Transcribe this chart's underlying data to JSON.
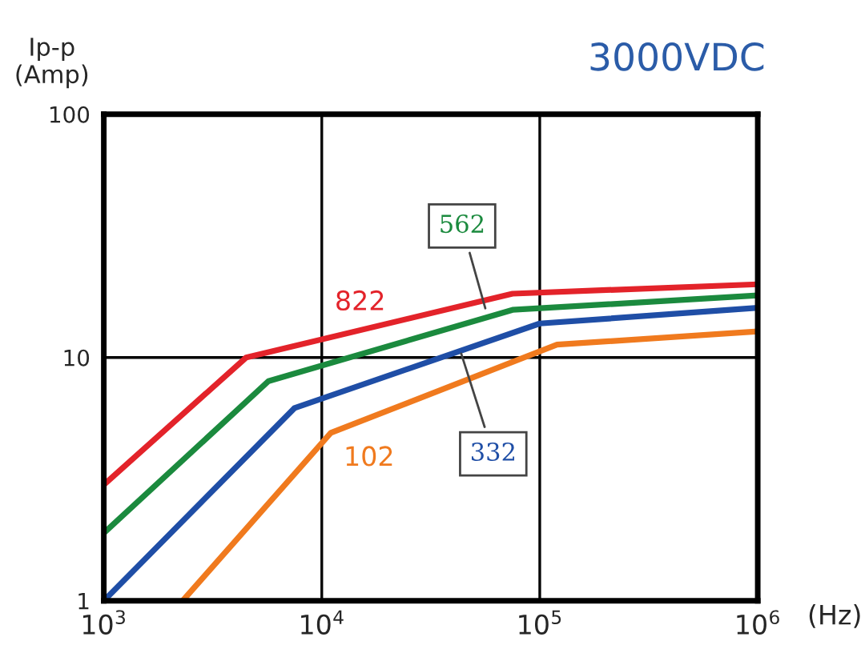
{
  "chart_data": {
    "type": "line",
    "title": "3000VDC",
    "xlabel": "(Hz)",
    "ylabel": "Ip-p\n(Amp)",
    "log": "xy",
    "xlim": [
      1000,
      1000000
    ],
    "ylim": [
      1,
      100
    ],
    "xticks": [
      {
        "value": 1000,
        "label": "10$^{3}$"
      },
      {
        "value": 10000,
        "label": "10$^{4}$"
      },
      {
        "value": 100000,
        "label": "10$^{5}$"
      },
      {
        "value": 1000000,
        "label": "10$^{6}$"
      }
    ],
    "yticks": [
      1,
      10,
      100
    ],
    "grid": true,
    "marker": "none",
    "line_style": "solid",
    "series": [
      {
        "color": "#e3232a",
        "x": [
          1000,
          4500,
          75000,
          1000000
        ],
        "values": [
          3.0,
          10,
          18.3,
          20
        ]
      },
      {
        "color": "#1b8a3e",
        "x": [
          1000,
          5700,
          75000,
          1000000
        ],
        "values": [
          1.9,
          8.0,
          15.7,
          18
        ]
      },
      {
        "color": "#1f4ea6",
        "x": [
          1000,
          7500,
          100000,
          1000000
        ],
        "values": [
          1.0,
          6.2,
          13.8,
          16
        ]
      },
      {
        "color": "#f07a1e",
        "x": [
          2300,
          11000,
          120000,
          1000000
        ],
        "values": [
          1.0,
          4.9,
          11.3,
          12.8
        ]
      }
    ],
    "annotations": [
      {
        "text": "822",
        "x": 15000,
        "y": 12.5
      },
      {
        "text": "562",
        "x": 57000,
        "y": 15.3
      },
      {
        "text": "332",
        "x": 43000,
        "y": 10.8
      },
      {
        "text": "102",
        "x": 15000,
        "y": 5.5
      }
    ]
  }
}
